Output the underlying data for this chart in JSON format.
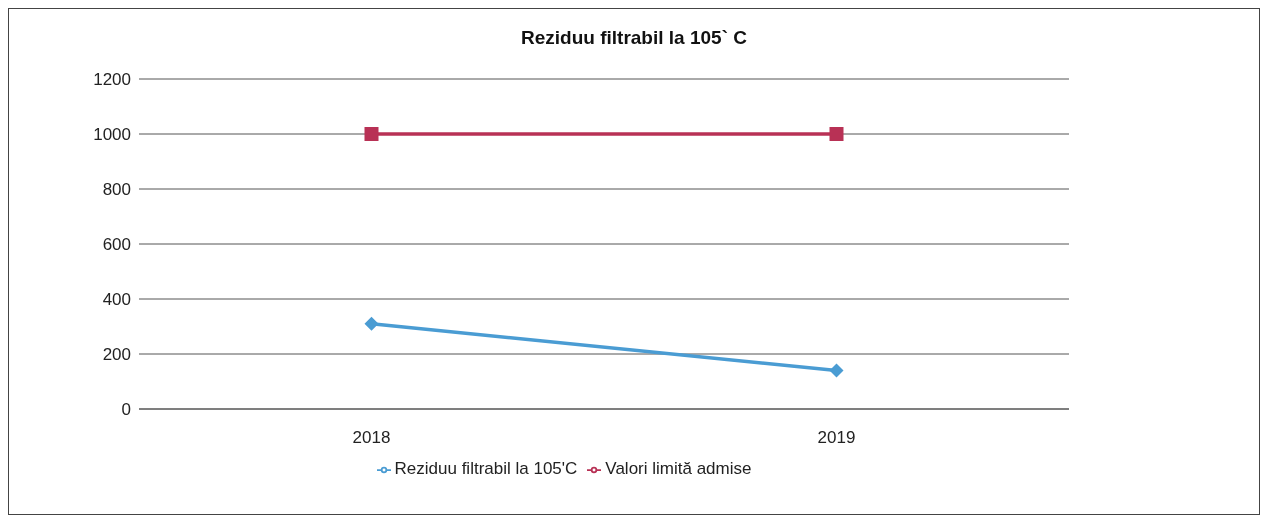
{
  "chart_data": {
    "type": "line",
    "title": "Reziduu filtrabil la 105` C",
    "categories": [
      "2018",
      "2019"
    ],
    "series": [
      {
        "name": "Reziduu filtrabil la 105'C",
        "color": "#4a9cd3",
        "values": [
          310,
          140
        ],
        "marker": "diamond"
      },
      {
        "name": "Valori limită admise",
        "color": "#b83155",
        "values": [
          1000,
          1000
        ],
        "marker": "square"
      }
    ],
    "ylim": [
      0,
      1200
    ],
    "yticks": [
      0,
      200,
      400,
      600,
      800,
      1000,
      1200
    ],
    "grid": "y",
    "legend": "bottom",
    "line_style": "solid"
  }
}
